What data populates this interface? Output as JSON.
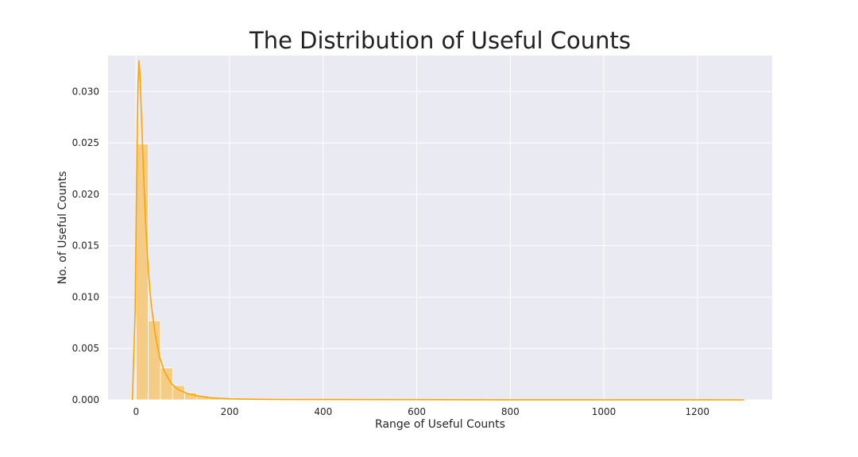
{
  "chart_data": {
    "type": "histogram",
    "title": "The Distribution of Useful Counts",
    "xlabel": "Range of Useful Counts",
    "ylabel": "No. of Useful Counts",
    "xlim": [
      -60,
      1360
    ],
    "ylim": [
      0,
      0.0335
    ],
    "xticks": [
      0,
      200,
      400,
      600,
      800,
      1000,
      1200
    ],
    "yticks": [
      0.0,
      0.005,
      0.01,
      0.015,
      0.02,
      0.025,
      0.03
    ],
    "ytick_labels": [
      "0.000",
      "0.005",
      "0.010",
      "0.015",
      "0.020",
      "0.025",
      "0.030"
    ],
    "grid": true,
    "bin_width": 26,
    "bins": [
      {
        "x0": 0,
        "x1": 26,
        "density": 0.0249
      },
      {
        "x0": 26,
        "x1": 52,
        "density": 0.0077
      },
      {
        "x0": 52,
        "x1": 78,
        "density": 0.0031
      },
      {
        "x0": 78,
        "x1": 104,
        "density": 0.0014
      },
      {
        "x0": 104,
        "x1": 130,
        "density": 0.0007
      },
      {
        "x0": 130,
        "x1": 156,
        "density": 0.0004
      },
      {
        "x0": 156,
        "x1": 182,
        "density": 0.0002
      },
      {
        "x0": 182,
        "x1": 208,
        "density": 0.00012
      },
      {
        "x0": 208,
        "x1": 234,
        "density": 7e-05
      },
      {
        "x0": 234,
        "x1": 260,
        "density": 4e-05
      },
      {
        "x0": 260,
        "x1": 286,
        "density": 3e-05
      },
      {
        "x0": 286,
        "x1": 312,
        "density": 2e-05
      }
    ],
    "kde": {
      "x": [
        -8,
        -2,
        2,
        4,
        6,
        8,
        12,
        16,
        20,
        26,
        32,
        40,
        50,
        60,
        75,
        90,
        110,
        130,
        160,
        200,
        250,
        300,
        400,
        600,
        800,
        1000,
        1200,
        1300
      ],
      "y": [
        0.0,
        0.0085,
        0.025,
        0.0305,
        0.033,
        0.0318,
        0.027,
        0.022,
        0.0175,
        0.0127,
        0.0094,
        0.0066,
        0.0042,
        0.0028,
        0.0016,
        0.001,
        0.0006,
        0.0004,
        0.0002,
        0.0001,
        6e-05,
        4e-05,
        3e-05,
        2e-05,
        1e-05,
        1e-05,
        1e-05,
        0.0
      ]
    },
    "colors": {
      "background": "#eaeaf2",
      "grid": "#ffffff",
      "bar": "#f5cc85",
      "line": "#ffa500",
      "text": "#262626"
    }
  }
}
